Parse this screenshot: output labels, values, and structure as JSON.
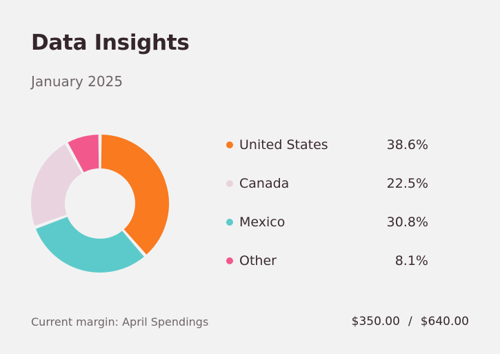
{
  "header": {
    "title": "Data Insights",
    "subtitle": "January 2025"
  },
  "chart_data": {
    "type": "pie",
    "variant": "donut",
    "title": "Data Insights",
    "subtitle": "January 2025",
    "categories": [
      "United States",
      "Canada",
      "Mexico",
      "Other"
    ],
    "values": [
      38.6,
      22.5,
      30.8,
      8.1
    ],
    "value_labels": [
      "38.6%",
      "22.5%",
      "30.8%",
      "8.1%"
    ],
    "colors": [
      "#f97a1f",
      "#e8d3df",
      "#5ccaca",
      "#f2588c"
    ],
    "legend_position": "right"
  },
  "footer": {
    "label": "Current margin: April Spendings",
    "current": "$350.00",
    "separator": "/",
    "total": "$640.00"
  }
}
